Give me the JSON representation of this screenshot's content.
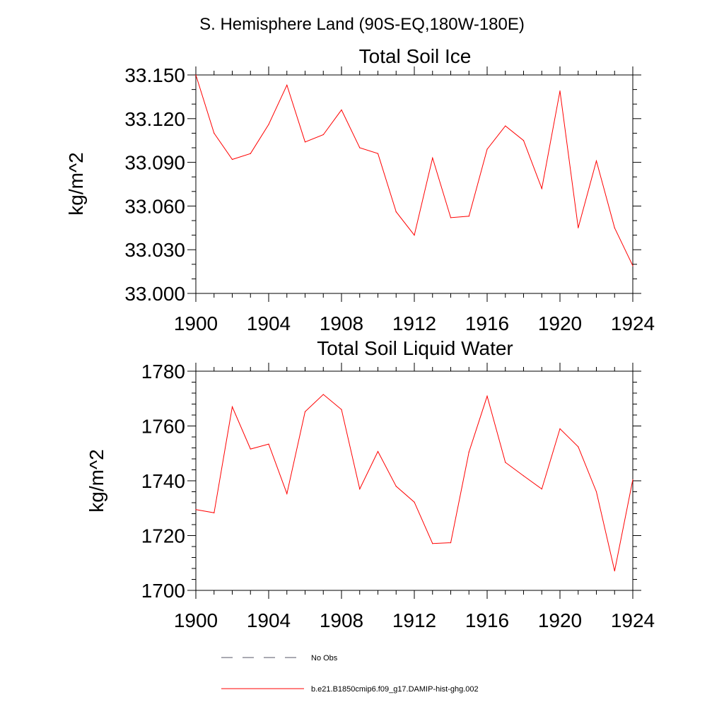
{
  "figure": {
    "title": "S. Hemisphere Land (90S-EQ,180W-180E)"
  },
  "chart_data": [
    {
      "type": "line",
      "title": "Total Soil Ice",
      "ylabel": "kg/m^2",
      "xlabel": "",
      "xlim": [
        1900,
        1924
      ],
      "ylim": [
        33.0,
        33.15
      ],
      "xticks": [
        "1900",
        "1904",
        "1908",
        "1912",
        "1916",
        "1920",
        "1924"
      ],
      "yticks": [
        "33.000",
        "33.030",
        "33.060",
        "33.090",
        "33.120",
        "33.150"
      ],
      "x": [
        1900,
        1901,
        1902,
        1903,
        1904,
        1905,
        1906,
        1907,
        1908,
        1909,
        1910,
        1911,
        1912,
        1913,
        1914,
        1915,
        1916,
        1917,
        1918,
        1919,
        1920,
        1921,
        1922,
        1923,
        1924
      ],
      "series": [
        {
          "name": "b.e21.B1850cmip6.f09_g17.DAMIP-hist-ghg.002",
          "color": "#ff0000",
          "values": [
            33.15,
            33.11,
            33.092,
            33.096,
            33.116,
            33.143,
            33.104,
            33.109,
            33.126,
            33.1,
            33.096,
            33.056,
            33.04,
            33.093,
            33.052,
            33.053,
            33.099,
            33.115,
            33.105,
            33.072,
            33.139,
            33.045,
            33.091,
            33.045,
            33.019
          ]
        }
      ]
    },
    {
      "type": "line",
      "title": "Total Soil Liquid Water",
      "ylabel": "kg/m^2",
      "xlabel": "",
      "xlim": [
        1900,
        1924
      ],
      "ylim": [
        1700,
        1780
      ],
      "xticks": [
        "1900",
        "1904",
        "1908",
        "1912",
        "1916",
        "1920",
        "1924"
      ],
      "yticks": [
        "1700",
        "1720",
        "1740",
        "1760",
        "1780"
      ],
      "x": [
        1900,
        1901,
        1902,
        1903,
        1904,
        1905,
        1906,
        1907,
        1908,
        1909,
        1910,
        1911,
        1912,
        1913,
        1914,
        1915,
        1916,
        1917,
        1918,
        1919,
        1920,
        1921,
        1922,
        1923,
        1924
      ],
      "series": [
        {
          "name": "b.e21.B1850cmip6.f09_g17.DAMIP-hist-ghg.002",
          "color": "#ff0000",
          "values": [
            1729.5,
            1728.3,
            1767.0,
            1751.6,
            1753.4,
            1735.3,
            1765.2,
            1771.5,
            1766.0,
            1737.0,
            1750.7,
            1738.0,
            1732.2,
            1717.1,
            1717.4,
            1750.5,
            1770.9,
            1746.7,
            1741.8,
            1737.0,
            1759.0,
            1752.4,
            1736.0,
            1707.1,
            1740.4
          ]
        }
      ]
    }
  ],
  "legend": {
    "position": "bottom",
    "entries": [
      {
        "label": "No Obs",
        "style": "dashed",
        "color": "#555566"
      },
      {
        "label": "b.e21.B1850cmip6.f09_g17.DAMIP-hist-ghg.002",
        "style": "solid",
        "color": "#ff0000"
      }
    ]
  }
}
